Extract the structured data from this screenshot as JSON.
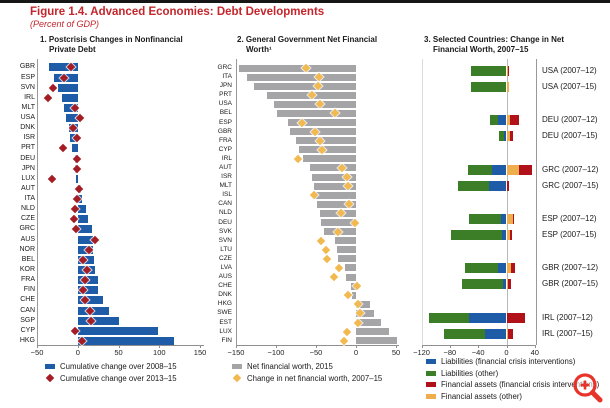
{
  "page": {
    "title": "Figure 1.4. Advanced Economies: Debt Developments",
    "subtitle": "(Percent of GDP)"
  },
  "colors": {
    "accent_red": "#c3262c",
    "axis_gray": "#8f8f8f",
    "bar_blue": "#1f5ca8",
    "diamond_red": "#a41c24",
    "bar_gray": "#a5a5a7",
    "diamond_yellow": "#f2b951",
    "stack_blue": "#1f5ca8",
    "stack_green": "#3c7d28",
    "stack_red": "#b11119",
    "stack_yellow": "#efae4e",
    "magnifier_red": "#e8332a"
  },
  "chart_data": [
    {
      "type": "bar",
      "title_lines": [
        "1. Postcrisis Changes in Nonfinancial",
        "Private Debt"
      ],
      "xlim": [
        -50,
        150
      ],
      "xticks": [
        -50,
        0,
        50,
        100,
        150
      ],
      "grid": false,
      "legend_position": "bottom",
      "categories": [
        "GBR",
        "ESP",
        "SVN",
        "IRL",
        "MLT",
        "USA",
        "DNK",
        "ISR",
        "PRT",
        "DEU",
        "JPN",
        "LUX",
        "AUT",
        "ITA",
        "NLD",
        "CZE",
        "GRC",
        "AUS",
        "NOR",
        "BEL",
        "KOR",
        "FRA",
        "FIN",
        "CHE",
        "CAN",
        "SGP",
        "CYP",
        "HKG"
      ],
      "series": [
        {
          "name": "Cumulative change over 2008–15",
          "marker": "bar",
          "color_key": "bar_blue",
          "values": [
            -35,
            -29,
            -24,
            -20,
            -17,
            -14,
            -11,
            -10,
            -7,
            -4,
            -3,
            -2,
            4,
            5,
            10,
            12,
            17,
            19,
            19,
            20,
            21,
            25,
            25,
            31,
            38,
            50,
            98,
            118
          ]
        },
        {
          "name": "Cumulative change over 2013–15",
          "marker": "diamond",
          "color_key": "diamond_red",
          "values": [
            -8,
            -17,
            -30,
            -36,
            -3,
            3,
            -6,
            -1,
            -18,
            -1,
            -1,
            -32,
            2,
            -1,
            -3,
            -5,
            -2,
            21,
            14,
            6,
            11,
            9,
            6,
            9,
            15,
            16,
            -3,
            5
          ]
        }
      ]
    },
    {
      "type": "bar",
      "title_lines": [
        "2. General Government Net Financial",
        "Worth¹"
      ],
      "xlim": [
        -150,
        50
      ],
      "xticks": [
        -150,
        -100,
        -50,
        0,
        50
      ],
      "grid": false,
      "legend_position": "bottom",
      "categories": [
        "GRC",
        "ITA",
        "JPN",
        "PRT",
        "USA",
        "BEL",
        "ESP",
        "GBR",
        "FRA",
        "CYP",
        "IRL",
        "AUT",
        "ISR",
        "MLT",
        "ISL",
        "CAN",
        "NLD",
        "DEU",
        "SVK",
        "SVN",
        "LTU",
        "CZE",
        "LVA",
        "AUS",
        "CHE",
        "DNK",
        "HKG",
        "SWE",
        "EST",
        "LUX",
        "FIN"
      ],
      "series": [
        {
          "name": "Net financial worth, 2015",
          "marker": "bar",
          "color_key": "bar_gray",
          "values": [
            -146,
            -136,
            -128,
            -111,
            -102,
            -99,
            -85,
            -83,
            -75,
            -71,
            -66,
            -57,
            -55,
            -53,
            -52,
            -49,
            -45,
            -44,
            -40,
            -26,
            -24,
            -22,
            -14,
            -12,
            -6,
            -5,
            17,
            22,
            31,
            41,
            51
          ]
        },
        {
          "name": "Change in net financial worth, 2007–15",
          "marker": "diamond",
          "color_key": "diamond_yellow",
          "values": [
            -62,
            -46,
            -47,
            -55,
            -45,
            -26,
            -68,
            -51,
            -45,
            -43,
            -73,
            -18,
            -11,
            -10,
            -52,
            -9,
            -19,
            -1,
            -22,
            -44,
            -37,
            -36,
            -21,
            -27,
            1,
            -10,
            3,
            5,
            2,
            -11,
            -15
          ]
        }
      ]
    },
    {
      "type": "stacked_bar",
      "title_lines": [
        "3. Selected Countries: Change in Net",
        "Financial Worth, 2007–15"
      ],
      "xlim": [
        -120,
        40
      ],
      "xticks": [
        -120,
        -80,
        -40,
        0,
        40
      ],
      "grid": false,
      "legend_position": "bottom",
      "group_size": 2,
      "stack_order": [
        0,
        1,
        3,
        2
      ],
      "categories": [
        "USA (2007–12)",
        "USA (2007–15)",
        "DEU (2007–12)",
        "DEU (2007–15)",
        "GRC (2007–12)",
        "GRC (2007–15)",
        "ESP (2007–12)",
        "ESP (2007–15)",
        "GBR (2007–12)",
        "GBR (2007–15)",
        "IRL (2007–12)",
        "IRL (2007–15)"
      ],
      "series": [
        {
          "name": "Liabilities (financial crisis interventions)",
          "color_key": "stack_blue",
          "values": [
            0,
            0,
            -12,
            -4,
            -20,
            -25,
            -8,
            -7,
            -12,
            -5,
            -53,
            -31
          ]
        },
        {
          "name": "Liabilities (other)",
          "color_key": "stack_green",
          "values": [
            -50,
            -50,
            -11,
            -7,
            -35,
            -44,
            -45,
            -71,
            -46,
            -58,
            -56,
            -57
          ]
        },
        {
          "name": "Financial assets (financial crisis interventions)",
          "color_key": "stack_red",
          "values": [
            1,
            0,
            13,
            4,
            18,
            4,
            2,
            3,
            6,
            5,
            26,
            7
          ]
        },
        {
          "name": "Financial assets (other)",
          "color_key": "stack_yellow",
          "values": [
            2,
            3,
            5,
            5,
            18,
            0,
            9,
            5,
            6,
            2,
            0,
            2
          ]
        }
      ]
    }
  ]
}
